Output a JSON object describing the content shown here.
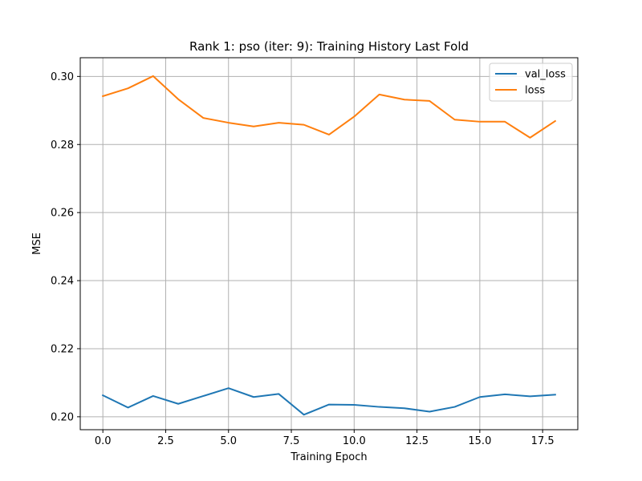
{
  "chart_data": {
    "type": "line",
    "title": "Rank 1: pso (iter: 9): Training History Last Fold",
    "xlabel": "Training Epoch",
    "ylabel": "MSE",
    "xlim": [
      -0.9,
      18.9
    ],
    "ylim": [
      0.1962,
      0.3055
    ],
    "xticks": [
      0.0,
      2.5,
      5.0,
      7.5,
      10.0,
      12.5,
      15.0,
      17.5
    ],
    "xtick_labels": [
      "0.0",
      "2.5",
      "5.0",
      "7.5",
      "10.0",
      "12.5",
      "15.0",
      "17.5"
    ],
    "yticks": [
      0.2,
      0.22,
      0.24,
      0.26,
      0.28,
      0.3
    ],
    "ytick_labels": [
      "0.20",
      "0.22",
      "0.24",
      "0.26",
      "0.28",
      "0.30"
    ],
    "grid": true,
    "legend_position": "top-right",
    "x": [
      0,
      1,
      2,
      3,
      4,
      5,
      6,
      7,
      8,
      9,
      10,
      11,
      12,
      13,
      14,
      15,
      16,
      17,
      18
    ],
    "series": [
      {
        "name": "val_loss",
        "color": "#1f77b4",
        "values": [
          0.2063,
          0.2027,
          0.2061,
          0.2038,
          0.2061,
          0.2084,
          0.2058,
          0.2067,
          0.2006,
          0.2036,
          0.2035,
          0.2029,
          0.2025,
          0.2015,
          0.2029,
          0.2058,
          0.2066,
          0.206,
          0.2065
        ]
      },
      {
        "name": "loss",
        "color": "#ff7f0e",
        "values": [
          0.2942,
          0.2965,
          0.3001,
          0.2933,
          0.2878,
          0.2864,
          0.2853,
          0.2864,
          0.2858,
          0.2829,
          0.2882,
          0.2947,
          0.2932,
          0.2928,
          0.2873,
          0.2867,
          0.2867,
          0.282,
          0.2869
        ]
      }
    ]
  }
}
